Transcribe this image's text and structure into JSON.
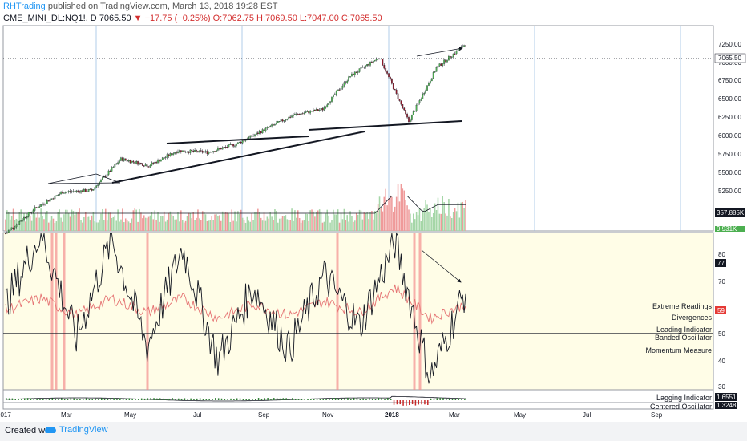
{
  "header": {
    "author": "RHTrading",
    "published_text": " published on TradingView.com, March 13, 2018 19:28 EST",
    "symbol": "CME_MINI_DL:NQ1!, D",
    "price": "7065.50",
    "change": "−17.75 (−0.25%)",
    "open": "O:7062.75",
    "high": "H:7069.50",
    "low": "L:7047.00",
    "close": "C:7065.50"
  },
  "footer": {
    "created_with": "Created with",
    "brand": "TradingView"
  },
  "colors": {
    "bull": "#4caf50",
    "bear": "#8b1a2b",
    "volume_up": "#a5d6a7",
    "volume_down": "#ef9a9a",
    "osc_bg": "#fffde7",
    "highlight": "#f48f8f",
    "grid_v": "#90b8e0",
    "signal_line": "#e57373"
  },
  "price_axis": [
    "7250.00",
    "7000.00",
    "6750.00",
    "6500.00",
    "6250.00",
    "6000.00",
    "5750.00",
    "5500.00",
    "5250.00"
  ],
  "osc_axis": [
    "80",
    "70",
    "60",
    "50",
    "40",
    "30"
  ],
  "time_axis": [
    "2017",
    "Mar",
    "May",
    "Jul",
    "Sep",
    "Nov",
    "2018",
    "Mar",
    "May",
    "Jul",
    "Sep"
  ],
  "badges": {
    "volume_ma": "357.885K",
    "volume_low": "9.931K",
    "osc_main": "77",
    "osc_signal": "59",
    "lag1": "1.6551",
    "lag2": "1.3248"
  },
  "annotations": [
    "Extreme Readings",
    "Divergences",
    "Leading Indicator",
    "Banded Oscillator",
    "Momentum Measure",
    "Lagging Indicator",
    "Centered Oscillator"
  ],
  "chart_data": [
    {
      "type": "line",
      "title": "CME_MINI_DL:NQ1!, D",
      "description_series": "approximate daily close",
      "x": [
        "2017-01",
        "2017-02",
        "2017-03",
        "2017-04",
        "2017-05",
        "2017-06",
        "2017-07",
        "2017-08",
        "2017-09",
        "2017-10",
        "2017-11",
        "2017-12",
        "2018-01",
        "2018-01-26",
        "2018-02-08",
        "2018-02-28",
        "2018-03-12"
      ],
      "series": [
        {
          "values": [
            4900,
            5200,
            5400,
            5420,
            5800,
            5720,
            5900,
            5880,
            5980,
            6150,
            6330,
            6400,
            6800,
            7030,
            6250,
            6900,
            7190
          ]
        }
      ],
      "ylim": [
        4950,
        7400
      ],
      "drawings": [
        "ascending wedge 2017-05 to 2017-10",
        "support line 2017-10 to 2018-03",
        "divergence arrow 2018-01 to 2018-03"
      ]
    },
    {
      "type": "line",
      "series": [
        {
          "values": [
            60,
            85,
            48,
            83,
            45,
            80,
            40,
            66,
            44,
            70,
            52,
            82,
            34,
            65
          ]
        },
        {
          "values": [
            58,
            62,
            56,
            62,
            57,
            62,
            55,
            60,
            56,
            61,
            57,
            66,
            55,
            60
          ]
        }
      ],
      "ylim": [
        30,
        85
      ]
    }
  ]
}
